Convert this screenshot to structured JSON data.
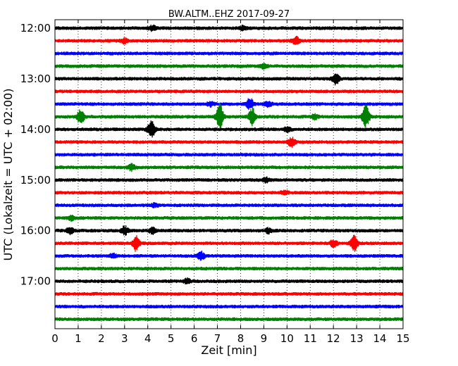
{
  "chart_data": {
    "type": "line",
    "title": "BW.ALTM..EHZ 2017-09-27",
    "xlabel": "Zeit  [min]",
    "ylabel": "UTC (Lokalzeit = UTC + 02:00)",
    "xlim": [
      0,
      15
    ],
    "x_ticks": [
      0,
      1,
      2,
      3,
      4,
      5,
      6,
      7,
      8,
      9,
      10,
      11,
      12,
      13,
      14,
      15
    ],
    "y_tick_labels": [
      "12:00",
      "13:00",
      "14:00",
      "15:00",
      "16:00",
      "17:00"
    ],
    "trace_interval_min": 15,
    "grid": "vertical dotted",
    "trace_colors": [
      "#000000",
      "#ff0000",
      "#0000ff",
      "#008000"
    ],
    "traces": [
      {
        "start": "12:00",
        "events": [
          [
            4.2,
            1.2
          ],
          [
            8.1,
            1.0
          ]
        ]
      },
      {
        "start": "12:15",
        "events": [
          [
            3.0,
            1.2
          ],
          [
            10.4,
            2.2
          ]
        ]
      },
      {
        "start": "12:30",
        "events": []
      },
      {
        "start": "12:45",
        "events": [
          [
            9.0,
            1.2
          ]
        ]
      },
      {
        "start": "13:00",
        "events": [
          [
            12.1,
            3.0
          ]
        ]
      },
      {
        "start": "13:15",
        "events": []
      },
      {
        "start": "13:30",
        "events": [
          [
            8.4,
            3.0
          ],
          [
            9.2,
            1.4
          ],
          [
            6.7,
            1.0
          ]
        ]
      },
      {
        "start": "13:45",
        "events": [
          [
            1.1,
            4.0
          ],
          [
            7.1,
            6.5
          ],
          [
            8.5,
            4.5
          ],
          [
            13.4,
            6.0
          ],
          [
            11.2,
            1.3
          ]
        ]
      },
      {
        "start": "14:00",
        "events": [
          [
            4.15,
            5.0
          ],
          [
            10.0,
            1.3
          ]
        ]
      },
      {
        "start": "14:15",
        "events": [
          [
            10.2,
            2.5
          ]
        ]
      },
      {
        "start": "14:30",
        "events": []
      },
      {
        "start": "14:45",
        "events": [
          [
            3.3,
            1.5
          ]
        ]
      },
      {
        "start": "15:00",
        "events": [
          [
            9.1,
            1.1
          ]
        ]
      },
      {
        "start": "15:15",
        "events": [
          [
            9.9,
            1.1
          ]
        ]
      },
      {
        "start": "15:30",
        "events": [
          [
            4.3,
            1.0
          ]
        ]
      },
      {
        "start": "15:45",
        "events": [
          [
            0.7,
            1.0
          ]
        ]
      },
      {
        "start": "16:00",
        "events": [
          [
            3.0,
            2.3
          ],
          [
            4.2,
            1.5
          ],
          [
            0.65,
            1.6
          ],
          [
            9.2,
            1.2
          ]
        ]
      },
      {
        "start": "16:15",
        "events": [
          [
            3.5,
            4.0
          ],
          [
            12.9,
            3.8
          ],
          [
            12.0,
            1.8
          ]
        ]
      },
      {
        "start": "16:30",
        "events": [
          [
            6.3,
            2.0
          ],
          [
            2.5,
            1.0
          ]
        ]
      },
      {
        "start": "16:45",
        "events": []
      },
      {
        "start": "17:00",
        "events": [
          [
            5.7,
            1.2
          ]
        ]
      },
      {
        "start": "17:15",
        "events": []
      },
      {
        "start": "17:30",
        "events": []
      },
      {
        "start": "17:45",
        "events": []
      }
    ]
  }
}
